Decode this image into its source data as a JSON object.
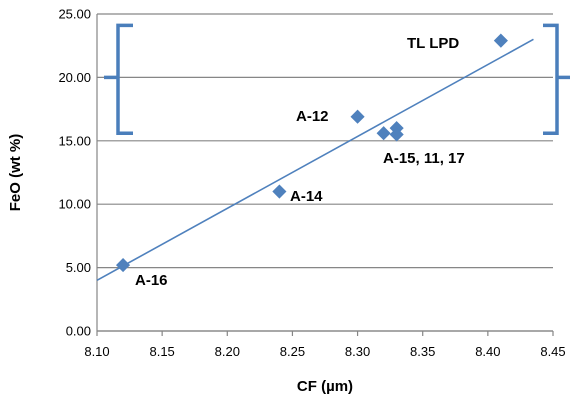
{
  "chart_data": {
    "type": "scatter",
    "xlabel": "CF (µm)",
    "ylabel": "FeO (wt %)",
    "xlim": [
      8.1,
      8.45
    ],
    "ylim": [
      0.0,
      25.0
    ],
    "xticks": [
      "8.10",
      "8.15",
      "8.20",
      "8.25",
      "8.30",
      "8.35",
      "8.40",
      "8.45"
    ],
    "yticks": [
      "0.00",
      "5.00",
      "10.00",
      "15.00",
      "20.00",
      "25.00"
    ],
    "grid": "horizontal",
    "marker": "diamond",
    "series_color": "#4F81BD",
    "trendline_color": "#4F81BD",
    "bracket_color": "#4A7EBB",
    "points": [
      {
        "x": 8.12,
        "y": 5.2
      },
      {
        "x": 8.24,
        "y": 11.0
      },
      {
        "x": 8.3,
        "y": 16.9
      },
      {
        "x": 8.32,
        "y": 15.6
      },
      {
        "x": 8.33,
        "y": 16.0
      },
      {
        "x": 8.33,
        "y": 15.5
      },
      {
        "x": 8.41,
        "y": 22.9
      }
    ],
    "trendline": {
      "x": [
        8.1,
        8.435
      ],
      "y": [
        4.0,
        23.0
      ]
    },
    "range_bracket": {
      "y_center": 20.0,
      "y_low": 15.6,
      "y_high": 24.1
    },
    "annotations": [
      "A-16",
      "A-14",
      "A-12",
      "A-15, 11, 17",
      "TL  LPD"
    ]
  }
}
